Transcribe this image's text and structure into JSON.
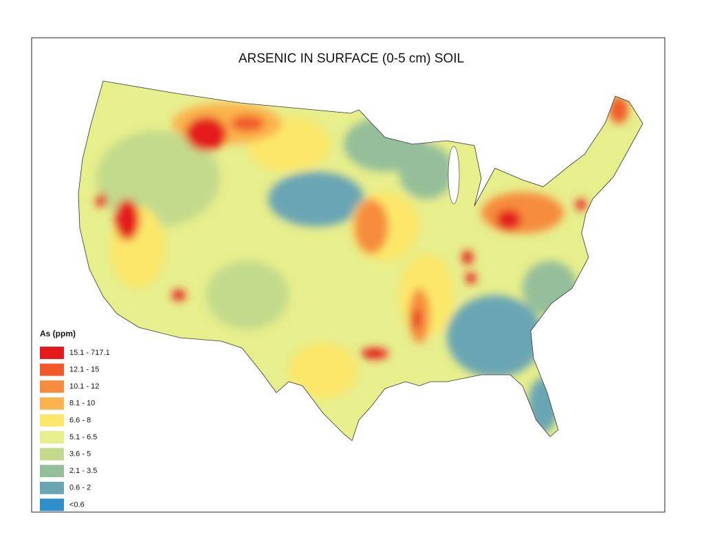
{
  "title": "ARSENIC IN SURFACE (0-5 cm) SOIL",
  "legend": {
    "title": "As (ppm)",
    "items": [
      {
        "label": "15.1 - 717.1",
        "color": "#e41a1c"
      },
      {
        "label": "12.1 - 15",
        "color": "#f05a2a"
      },
      {
        "label": "10.1 - 12",
        "color": "#f68c3e"
      },
      {
        "label": "8.1 - 10",
        "color": "#fbb34e"
      },
      {
        "label": "6.6 - 8",
        "color": "#fce76a"
      },
      {
        "label": "5.1 - 6.5",
        "color": "#e7ee8c"
      },
      {
        "label": "3.6 - 5",
        "color": "#c3da8c"
      },
      {
        "label": "2.1 - 3.5",
        "color": "#94bf9a"
      },
      {
        "label": "0.6 - 2",
        "color": "#6aa5b4"
      },
      {
        "label": "<0.6",
        "color": "#2f8fc9"
      }
    ]
  }
}
